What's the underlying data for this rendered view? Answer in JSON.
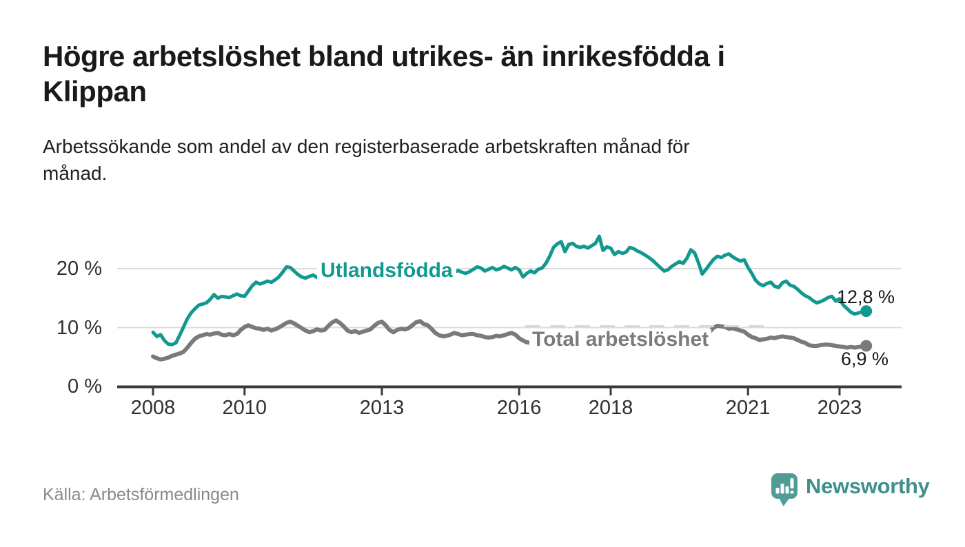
{
  "header": {
    "title": "Högre arbetslöshet bland utrikes- än inrikesfödda i\nKlippan",
    "subtitle": "Arbetssökande som andel av den registerbaserade arbetskraften månad för\nmånad."
  },
  "chart_data": {
    "type": "line",
    "title": "Högre arbetslöshet bland utrikes- än inrikesfödda i Klippan",
    "xlabel": "",
    "ylabel": "Arbetssökande som andel av den registerbaserade arbetskraften",
    "x_axis": {
      "start_year": 2008,
      "start_month": 1,
      "frequency": "monthly",
      "end_label_last_point": "2023-08",
      "tick_years": [
        2008,
        2010,
        2013,
        2016,
        2018,
        2021,
        2023
      ]
    },
    "y_axis": {
      "unit": "%",
      "ticks": [
        {
          "value": 0,
          "label": "0 %"
        },
        {
          "value": 10,
          "label": "10 %"
        },
        {
          "value": 20,
          "label": "20 %"
        }
      ],
      "range": [
        0,
        27
      ],
      "grid": "horizontal"
    },
    "legend": "inline-labels",
    "series": [
      {
        "id": "utlandsfodda",
        "name": "Utlandsfödda",
        "color": "#12998f",
        "end_label": "12,8 %",
        "end_value": 12.8,
        "values": [
          9.2,
          8.5,
          8.8,
          7.8,
          7.2,
          7.1,
          7.4,
          8.7,
          10.1,
          11.5,
          12.5,
          13.2,
          13.8,
          14.0,
          14.2,
          14.8,
          15.6,
          15.0,
          15.3,
          15.2,
          15.1,
          15.4,
          15.7,
          15.4,
          15.3,
          16.2,
          17.1,
          17.7,
          17.4,
          17.6,
          17.9,
          17.7,
          18.1,
          18.6,
          19.4,
          20.3,
          20.2,
          19.6,
          19.0,
          18.6,
          18.4,
          18.7,
          18.9,
          18.5,
          18.3,
          18.6,
          18.4,
          18.7,
          18.8,
          19.0,
          18.6,
          18.9,
          18.5,
          18.3,
          18.6,
          18.4,
          18.7,
          18.9,
          18.6,
          18.9,
          19.1,
          18.8,
          19.2,
          18.9,
          18.6,
          18.9,
          18.7,
          19.0,
          18.8,
          19.1,
          19.3,
          19.0,
          19.2,
          18.9,
          19.3,
          19.1,
          18.8,
          19.1,
          18.9,
          19.4,
          19.7,
          19.4,
          19.2,
          19.5,
          19.9,
          20.3,
          20.1,
          19.6,
          19.9,
          20.2,
          19.8,
          20.0,
          20.4,
          20.1,
          19.8,
          20.2,
          19.8,
          18.6,
          19.2,
          19.6,
          19.3,
          19.9,
          20.1,
          20.9,
          22.1,
          23.6,
          24.2,
          24.6,
          22.9,
          24.1,
          24.3,
          23.8,
          23.6,
          23.8,
          23.5,
          23.9,
          24.3,
          25.5,
          23.1,
          23.7,
          23.5,
          22.4,
          22.9,
          22.6,
          22.8,
          23.6,
          23.4,
          23.0,
          22.7,
          22.3,
          21.9,
          21.4,
          20.8,
          20.2,
          19.6,
          19.8,
          20.4,
          20.8,
          21.2,
          20.9,
          21.8,
          23.2,
          22.7,
          21.0,
          19.1,
          19.9,
          20.8,
          21.6,
          22.1,
          21.9,
          22.3,
          22.5,
          22.0,
          21.6,
          21.3,
          21.5,
          20.2,
          19.2,
          18.0,
          17.4,
          17.1,
          17.5,
          17.7,
          17.0,
          16.8,
          17.6,
          17.9,
          17.2,
          17.0,
          16.5,
          15.9,
          15.4,
          15.1,
          14.6,
          14.2,
          14.4,
          14.7,
          15.1,
          15.3,
          14.5,
          14.9,
          13.8,
          13.2,
          12.6,
          12.3,
          12.5,
          12.7,
          12.8
        ]
      },
      {
        "id": "total-arbetsloshet",
        "name": "Total arbetslöshet",
        "color": "#7a7a7a",
        "end_label": "6,9 %",
        "end_value": 6.9,
        "values": [
          5.1,
          4.8,
          4.6,
          4.7,
          4.9,
          5.2,
          5.4,
          5.6,
          5.9,
          6.6,
          7.4,
          8.1,
          8.5,
          8.7,
          8.9,
          8.8,
          9.0,
          9.1,
          8.8,
          8.7,
          8.9,
          8.7,
          8.9,
          9.6,
          10.1,
          10.4,
          10.1,
          9.9,
          9.8,
          9.6,
          9.8,
          9.5,
          9.7,
          10.0,
          10.4,
          10.8,
          11.0,
          10.7,
          10.3,
          9.9,
          9.5,
          9.2,
          9.4,
          9.7,
          9.5,
          9.6,
          10.3,
          10.9,
          11.2,
          10.8,
          10.2,
          9.5,
          9.2,
          9.4,
          9.1,
          9.3,
          9.5,
          9.7,
          10.3,
          10.8,
          11.0,
          10.4,
          9.6,
          9.2,
          9.6,
          9.8,
          9.7,
          9.9,
          10.4,
          10.9,
          11.1,
          10.6,
          10.4,
          9.8,
          9.1,
          8.7,
          8.5,
          8.6,
          8.8,
          9.1,
          8.9,
          8.7,
          8.8,
          8.9,
          8.9,
          8.7,
          8.6,
          8.4,
          8.3,
          8.4,
          8.6,
          8.5,
          8.7,
          8.9,
          9.1,
          8.8,
          8.2,
          7.8,
          7.5,
          7.4,
          7.2,
          7.1,
          7.3,
          7.4,
          7.2,
          7.0,
          7.1,
          7.3,
          7.4,
          7.2,
          7.1,
          7.0,
          6.9,
          7.0,
          7.2,
          7.3,
          7.4,
          7.3,
          7.2,
          7.4,
          7.5,
          7.3,
          7.2,
          7.0,
          6.9,
          7.0,
          7.1,
          7.2,
          7.1,
          7.0,
          7.1,
          7.3,
          7.4,
          7.3,
          7.2,
          7.3,
          7.4,
          7.5,
          7.7,
          7.8,
          7.9,
          8.0,
          8.2,
          8.4,
          8.7,
          8.9,
          9.3,
          10.0,
          10.3,
          10.2,
          10.1,
          9.8,
          9.9,
          9.7,
          9.5,
          9.3,
          8.8,
          8.4,
          8.2,
          7.9,
          8.0,
          8.1,
          8.3,
          8.2,
          8.4,
          8.5,
          8.4,
          8.3,
          8.2,
          7.9,
          7.6,
          7.4,
          7.0,
          6.9,
          6.9,
          7.0,
          7.1,
          7.1,
          7.0,
          6.9,
          6.8,
          6.7,
          6.6,
          6.7,
          6.6,
          6.7,
          6.8,
          6.9
        ]
      }
    ]
  },
  "footer": {
    "source": "Källa: Arbetsförmedlingen",
    "brand": "Newsworthy"
  },
  "colors": {
    "accent_teal": "#12998f",
    "series_gray": "#7a7a7a",
    "gridline": "#dcdcdc",
    "axis": "#3b3b3b",
    "logo_bubble": "#4f9d96",
    "logo_text": "#3f8f8a"
  }
}
